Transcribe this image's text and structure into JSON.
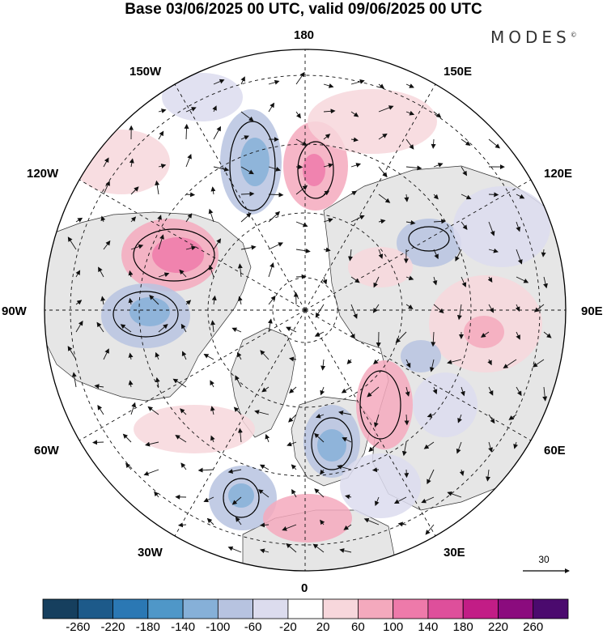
{
  "title": "Base 03/06/2025 00 UTC, valid 09/06/2025 00 UTC",
  "brand": "MODES",
  "brand_mark": "©",
  "lon_labels": {
    "lon_180": "180",
    "lon_150w": "150W",
    "lon_150e": "150E",
    "lon_120w": "120W",
    "lon_120e": "120E",
    "lon_90w": "90W",
    "lon_90e": "90E",
    "lon_60w": "60W",
    "lon_60e": "60E",
    "lon_30w": "30W",
    "lon_30e": "30E",
    "lon_0": "0"
  },
  "vector_reference": "30",
  "colorbar": {
    "labels": [
      "-260",
      "-220",
      "-180",
      "-140",
      "-100",
      "-60",
      "-20",
      "20",
      "60",
      "100",
      "140",
      "180",
      "220",
      "260"
    ],
    "colors": [
      "#163f5e",
      "#1d5a8a",
      "#2b78b4",
      "#4f97c8",
      "#86b0d8",
      "#b7c3e0",
      "#dcdcee",
      "#ffffff",
      "#f7d7dc",
      "#f4a9bd",
      "#ee7aaa",
      "#de4f9b",
      "#c21d86",
      "#8b0b7e",
      "#4b0a6e"
    ]
  },
  "colors": {
    "land": "#e8e8e8",
    "ocean": "#ffffff"
  }
}
